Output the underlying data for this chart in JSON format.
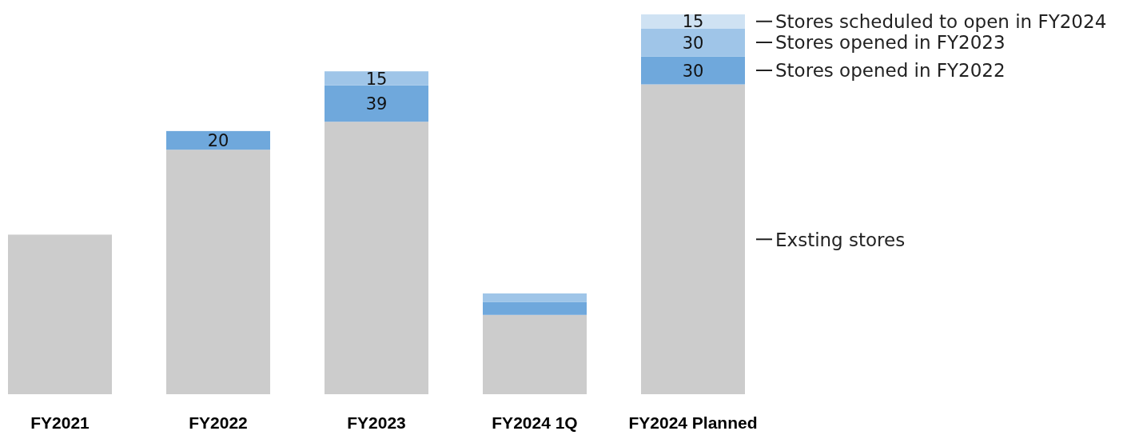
{
  "chart_data": {
    "type": "bar",
    "stacked": true,
    "categories": [
      "FY2021",
      "FY2022",
      "FY2023",
      "FY2024 1Q",
      "FY2024 Planned"
    ],
    "series": [
      {
        "name": "Exsting stores",
        "color": "#cccccc",
        "values": [
          171,
          262,
          292,
          85,
          332
        ]
      },
      {
        "name": "Stores opened in FY2022",
        "color": "#6fa8dc",
        "values": [
          null,
          20,
          39,
          14,
          30
        ],
        "value_labels": [
          null,
          "20",
          "39",
          null,
          "30"
        ]
      },
      {
        "name": "Stores opened in FY2023",
        "color": "#9fc5e8",
        "values": [
          null,
          null,
          15,
          9,
          30
        ],
        "value_labels": [
          null,
          null,
          "15",
          null,
          "30"
        ]
      },
      {
        "name": "Stores scheduled to open in FY2024",
        "color": "#cfe2f3",
        "values": [
          null,
          null,
          null,
          null,
          15
        ],
        "value_labels": [
          null,
          null,
          null,
          null,
          "15"
        ]
      }
    ],
    "legend": "right",
    "tick_labels": "x"
  }
}
